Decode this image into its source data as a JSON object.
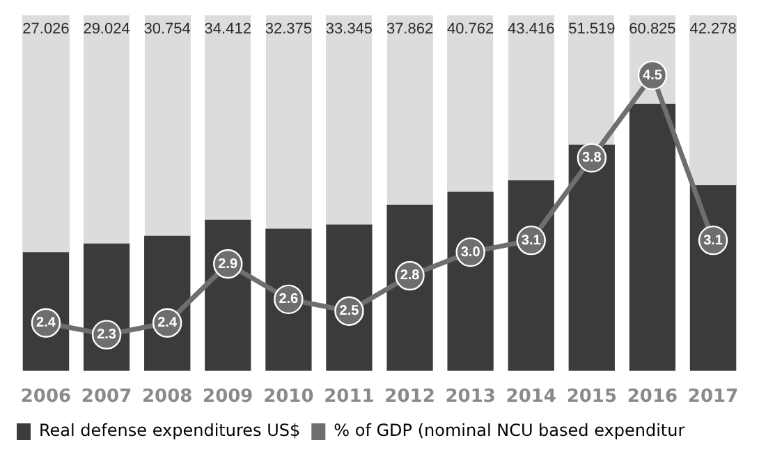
{
  "chart_data": {
    "type": "bar",
    "categories": [
      "2006",
      "2007",
      "2008",
      "2009",
      "2010",
      "2011",
      "2012",
      "2013",
      "2014",
      "2015",
      "2016",
      "2017"
    ],
    "series": [
      {
        "name": "Real defense expenditures US$",
        "color": "#3b3b3d",
        "values": [
          27.026,
          29.024,
          30.754,
          34.412,
          32.375,
          33.345,
          37.862,
          40.762,
          43.416,
          51.519,
          60.825,
          42.278
        ],
        "value_labels": [
          "27.026",
          "29.024",
          "30.754",
          "34.412",
          "32.375",
          "33.345",
          "37.862",
          "40.762",
          "43.416",
          "51.519",
          "60.825",
          "42.278"
        ]
      },
      {
        "name": "% of GDP (nominal NCU based expenditur",
        "type": "line",
        "axis": "y2",
        "color": "#6e6e6e",
        "values": [
          2.4,
          2.3,
          2.4,
          2.9,
          2.6,
          2.5,
          2.8,
          3.0,
          3.1,
          3.8,
          4.5,
          3.1
        ],
        "value_labels": [
          "2.4",
          "2.3",
          "2.4",
          "2.9",
          "2.6",
          "2.5",
          "2.8",
          "3.0",
          "3.1",
          "3.8",
          "4.5",
          "3.1"
        ]
      }
    ],
    "tick_labels": "x",
    "grid": false,
    "legend": "bottom",
    "marker": "circle"
  }
}
